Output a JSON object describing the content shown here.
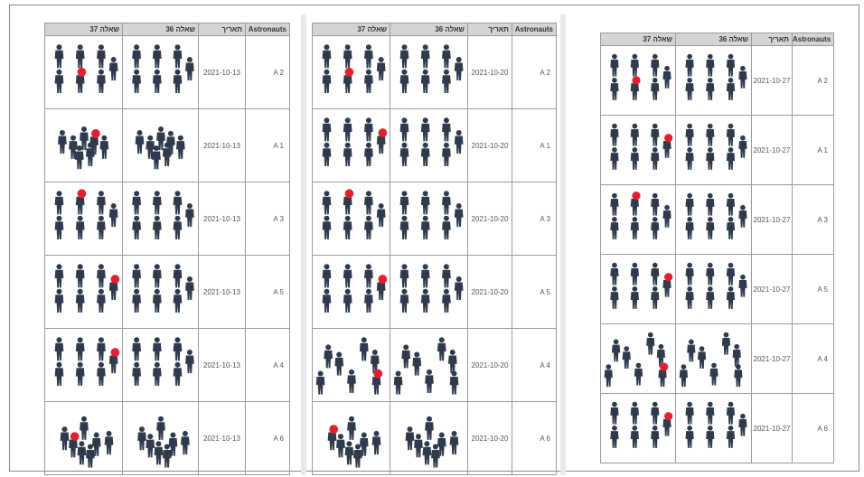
{
  "headers": {
    "astronauts": "Astronauts",
    "date": "תאריך",
    "q36": "שאלה 36",
    "q37": "שאלה 37"
  },
  "colors": {
    "figure": "#2f3b4c",
    "marker": "#e5202e",
    "header_bg": "#d4d4d4",
    "border": "#9a9a9a"
  },
  "icons": {
    "figure": "person-icon",
    "marker": "red-dot-marker"
  },
  "tables": [
    {
      "rows": [
        {
          "astronaut": "A 2",
          "date": "2021-10-13",
          "q36": "grid",
          "q37": "grid",
          "q37_marker": 4
        },
        {
          "astronaut": "A 1",
          "date": "2021-10-13",
          "q36": "cluster",
          "q37": "cluster",
          "q37_marker": 3
        },
        {
          "astronaut": "A 3",
          "date": "2021-10-13",
          "q36": "grid",
          "q37": "grid",
          "q37_marker": 1
        },
        {
          "astronaut": "A 5",
          "date": "2021-10-13",
          "q36": "grid",
          "q37": "grid",
          "q37_marker": 6
        },
        {
          "astronaut": "A 4",
          "date": "2021-10-13",
          "q36": "grid",
          "q37": "grid",
          "q37_marker": 6
        },
        {
          "astronaut": "A 6",
          "date": "2021-10-13",
          "q36": "swarm",
          "q37": "swarm",
          "q37_marker": 1
        }
      ]
    },
    {
      "rows": [
        {
          "astronaut": "A 2",
          "date": "2021-10-20",
          "q36": "grid",
          "q37": "grid",
          "q37_marker": 4
        },
        {
          "astronaut": "A 1",
          "date": "2021-10-20",
          "q36": "grid",
          "q37": "grid",
          "q37_marker": 6
        },
        {
          "astronaut": "A 3",
          "date": "2021-10-20",
          "q36": "grid",
          "q37": "grid",
          "q37_marker": 1
        },
        {
          "astronaut": "A 5",
          "date": "2021-10-20",
          "q36": "grid",
          "q37": "grid",
          "q37_marker": 6
        },
        {
          "astronaut": "A 4",
          "date": "2021-10-20",
          "q36": "scatter",
          "q37": "scatter",
          "q37_marker": 6
        },
        {
          "astronaut": "A 6",
          "date": "2021-10-20",
          "q36": "swarm",
          "q37": "swarm",
          "q37_marker": 0
        }
      ]
    },
    {
      "rows": [
        {
          "astronaut": "A 2",
          "date": "2021-10-27",
          "q36": "grid",
          "q37": "grid",
          "q37_marker": 4
        },
        {
          "astronaut": "A 1",
          "date": "2021-10-27",
          "q36": "grid",
          "q37": "grid",
          "q37_marker": 6
        },
        {
          "astronaut": "A 3",
          "date": "2021-10-27",
          "q36": "grid",
          "q37": "grid",
          "q37_marker": 1
        },
        {
          "astronaut": "A 5",
          "date": "2021-10-27",
          "q36": "grid",
          "q37": "grid",
          "q37_marker": 6
        },
        {
          "astronaut": "A 4",
          "date": "2021-10-27",
          "q36": "scatter",
          "q37": "scatter",
          "q37_marker": 6
        },
        {
          "astronaut": "A 6",
          "date": "2021-10-27",
          "q36": "grid",
          "q37": "grid",
          "q37_marker": 6
        }
      ]
    }
  ]
}
